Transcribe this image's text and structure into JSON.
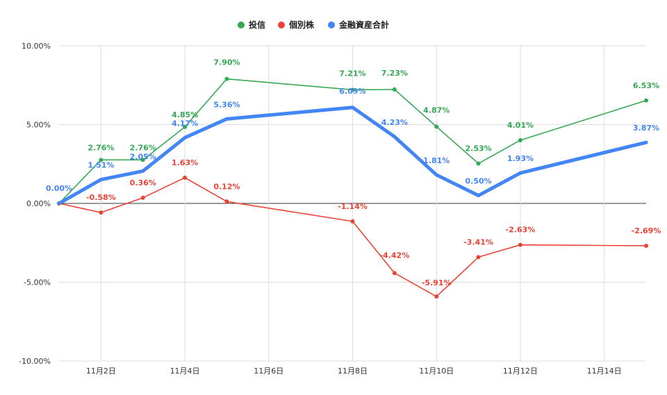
{
  "chart_data": {
    "type": "line",
    "x": [
      1,
      2,
      3,
      4,
      5,
      8,
      9,
      10,
      11,
      12,
      15
    ],
    "x_tick_values": [
      2,
      4,
      6,
      8,
      10,
      12,
      14
    ],
    "x_tick_labels": [
      "11月2日",
      "11月4日",
      "11月6日",
      "11月8日",
      "11月10日",
      "11月12日",
      "11月14日"
    ],
    "xlim": [
      1,
      15
    ],
    "ylim": [
      -10,
      10
    ],
    "y_ticks": [
      10,
      5,
      0,
      -5,
      -10
    ],
    "y_tick_labels": [
      "10.00%",
      "5.00%",
      "0.00%",
      "-5.00%",
      "-10.00%"
    ],
    "grid": true,
    "legend_position": "top-center",
    "series": [
      {
        "name": "投信",
        "color": "#34a853",
        "line_width": "thin",
        "values": [
          0.0,
          2.76,
          2.76,
          4.85,
          7.9,
          7.21,
          7.23,
          4.87,
          2.53,
          4.01,
          6.53
        ],
        "labels": [
          "",
          "2.76%",
          "2.76%",
          "4.85%",
          "7.90%",
          "7.21%",
          "7.23%",
          "4.87%",
          "2.53%",
          "4.01%",
          "6.53%"
        ]
      },
      {
        "name": "個別株",
        "color": "#ea4335",
        "line_width": "thin",
        "values": [
          0.0,
          -0.58,
          0.36,
          1.63,
          0.12,
          -1.14,
          -4.42,
          -5.91,
          -3.41,
          -2.63,
          -2.69
        ],
        "labels": [
          "",
          "-0.58%",
          "0.36%",
          "1.63%",
          "0.12%",
          "-1.14%",
          "-4.42%",
          "-5.91%",
          "-3.41%",
          "-2.63%",
          "-2.69%"
        ]
      },
      {
        "name": "金融資産合計",
        "color": "#4285f4",
        "line_width": "thick",
        "values": [
          0.0,
          1.51,
          2.05,
          4.17,
          5.36,
          6.09,
          4.23,
          1.81,
          0.5,
          1.93,
          3.87
        ],
        "labels": [
          "0.00%",
          "1.51%",
          "2.05%",
          "4.17%",
          "5.36%",
          "6.09%",
          "4.23%",
          "1.81%",
          "0.50%",
          "1.93%",
          "3.87%"
        ]
      }
    ]
  }
}
